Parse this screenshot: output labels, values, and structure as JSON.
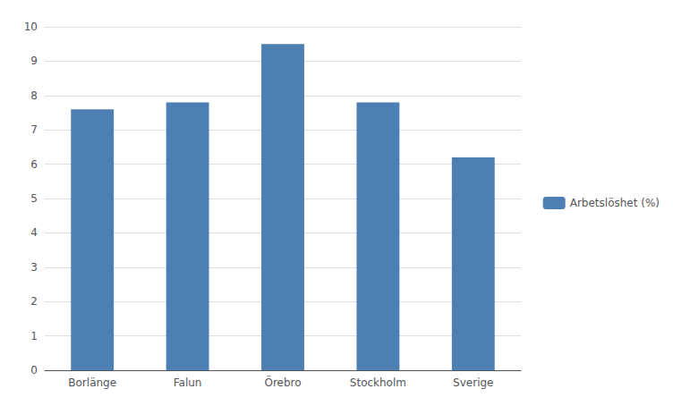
{
  "chart_data": {
    "type": "bar",
    "categories": [
      "Borlänge",
      "Falun",
      "Örebro",
      "Stockholm",
      "Sverige"
    ],
    "series": [
      {
        "name": "Arbetslöshet (%)",
        "color": "#4d7fb2",
        "values": [
          7.6,
          7.8,
          9.5,
          7.8,
          6.2
        ]
      }
    ],
    "ylim": [
      0,
      10
    ],
    "yticks": [
      0,
      1,
      2,
      3,
      4,
      5,
      6,
      7,
      8,
      9,
      10
    ],
    "grid": true,
    "legend": "right"
  }
}
